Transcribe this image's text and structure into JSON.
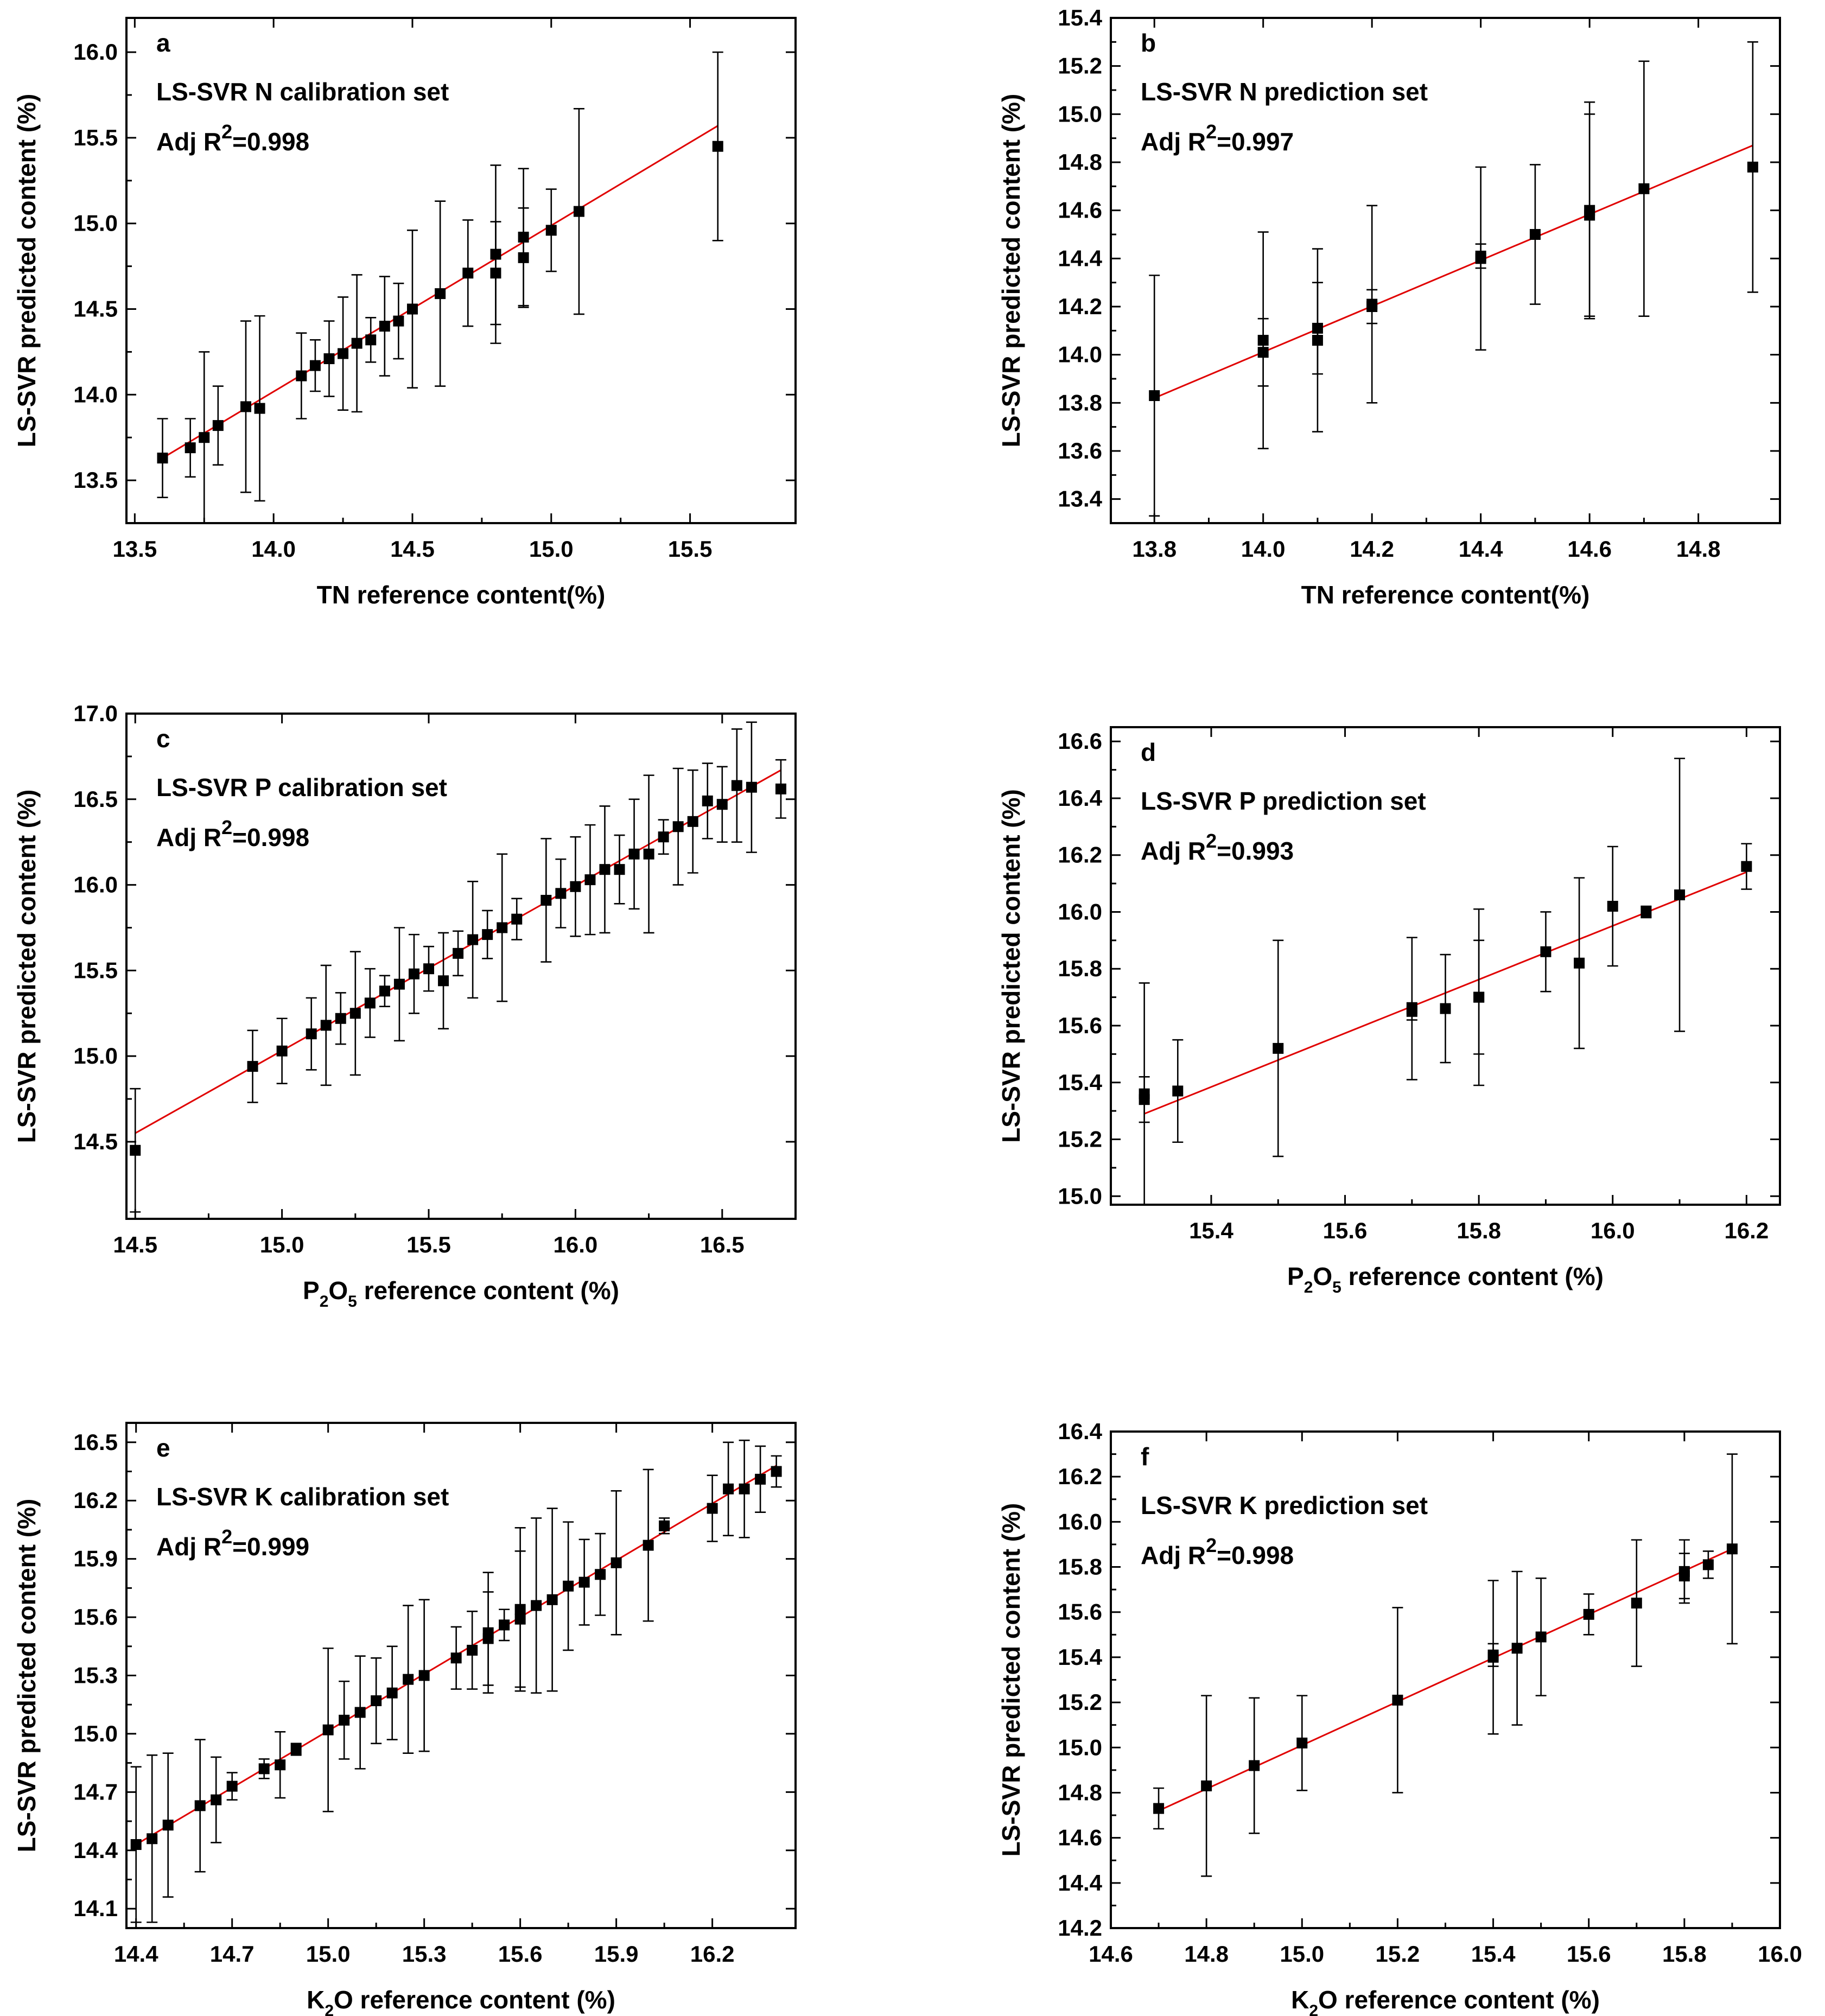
{
  "chart_data": [
    {
      "panel": "a",
      "type": "scatter",
      "title": "LS-SVR N calibration set",
      "r2_prefix": "Adj R",
      "r2_exp": "2",
      "r2_value": "=0.998",
      "xlabel": "TN reference content(%)",
      "ylabel": "LS-SVR predicted content (%)",
      "xlim": [
        13.47,
        15.88
      ],
      "ylim": [
        13.25,
        16.2
      ],
      "xticks": [
        13.5,
        14.0,
        14.5,
        15.0,
        15.5
      ],
      "yticks": [
        13.5,
        14.0,
        14.5,
        15.0,
        15.5,
        16.0
      ],
      "decimals": 1,
      "fit_line": {
        "x": [
          13.6,
          15.6
        ],
        "y": [
          13.63,
          15.57
        ]
      },
      "points": [
        {
          "x": 13.6,
          "y": 13.63,
          "err": 0.23
        },
        {
          "x": 13.7,
          "y": 13.69,
          "err": 0.17
        },
        {
          "x": 13.75,
          "y": 13.75,
          "err": 0.5
        },
        {
          "x": 13.8,
          "y": 13.82,
          "err": 0.23
        },
        {
          "x": 13.9,
          "y": 13.93,
          "err": 0.5
        },
        {
          "x": 13.95,
          "y": 13.92,
          "err": 0.54
        },
        {
          "x": 14.1,
          "y": 14.11,
          "err": 0.25
        },
        {
          "x": 14.15,
          "y": 14.17,
          "err": 0.15
        },
        {
          "x": 14.2,
          "y": 14.21,
          "err": 0.22
        },
        {
          "x": 14.25,
          "y": 14.24,
          "err": 0.33
        },
        {
          "x": 14.3,
          "y": 14.3,
          "err": 0.4
        },
        {
          "x": 14.35,
          "y": 14.32,
          "err": 0.13
        },
        {
          "x": 14.4,
          "y": 14.4,
          "err": 0.29
        },
        {
          "x": 14.45,
          "y": 14.43,
          "err": 0.22
        },
        {
          "x": 14.5,
          "y": 14.5,
          "err": 0.46
        },
        {
          "x": 14.6,
          "y": 14.59,
          "err": 0.54
        },
        {
          "x": 14.7,
          "y": 14.71,
          "err": 0.31
        },
        {
          "x": 14.8,
          "y": 14.82,
          "err": 0.52
        },
        {
          "x": 14.8,
          "y": 14.71,
          "err": 0.3
        },
        {
          "x": 14.9,
          "y": 14.92,
          "err": 0.4
        },
        {
          "x": 14.9,
          "y": 14.8,
          "err": 0.29
        },
        {
          "x": 15.0,
          "y": 14.96,
          "err": 0.24
        },
        {
          "x": 15.1,
          "y": 15.07,
          "err": 0.6
        },
        {
          "x": 15.6,
          "y": 15.45,
          "err": 0.55
        }
      ]
    },
    {
      "panel": "b",
      "type": "scatter",
      "title": "LS-SVR N prediction set",
      "r2_prefix": "Adj R",
      "r2_exp": "2",
      "r2_value": "=0.997",
      "xlabel": "TN reference content(%)",
      "ylabel": "LS-SVR predicted content (%)",
      "xlim": [
        13.72,
        14.95
      ],
      "ylim": [
        13.3,
        15.4
      ],
      "xticks": [
        13.8,
        14.0,
        14.2,
        14.4,
        14.6,
        14.8
      ],
      "yticks": [
        13.4,
        13.6,
        13.8,
        14.0,
        14.2,
        14.4,
        14.6,
        14.8,
        15.0,
        15.2,
        15.4
      ],
      "decimals": 1,
      "fit_line": {
        "x": [
          13.8,
          14.9
        ],
        "y": [
          13.82,
          14.87
        ]
      },
      "points": [
        {
          "x": 13.8,
          "y": 13.83,
          "err": 0.5
        },
        {
          "x": 14.0,
          "y": 14.06,
          "err": 0.45
        },
        {
          "x": 14.0,
          "y": 14.01,
          "err": 0.14
        },
        {
          "x": 14.1,
          "y": 14.11,
          "err": 0.19
        },
        {
          "x": 14.1,
          "y": 14.06,
          "err": 0.38
        },
        {
          "x": 14.2,
          "y": 14.21,
          "err": 0.41
        },
        {
          "x": 14.2,
          "y": 14.2,
          "err": 0.07
        },
        {
          "x": 14.4,
          "y": 14.4,
          "err": 0.38
        },
        {
          "x": 14.4,
          "y": 14.41,
          "err": 0.05
        },
        {
          "x": 14.5,
          "y": 14.5,
          "err": 0.29
        },
        {
          "x": 14.6,
          "y": 14.6,
          "err": 0.45
        },
        {
          "x": 14.6,
          "y": 14.58,
          "err": 0.42
        },
        {
          "x": 14.7,
          "y": 14.69,
          "err": 0.53
        },
        {
          "x": 14.9,
          "y": 14.78,
          "err": 0.52
        }
      ]
    },
    {
      "panel": "c",
      "type": "scatter",
      "title": "LS-SVR P calibration set",
      "r2_prefix": "Adj R",
      "r2_exp": "2",
      "r2_value": "=0.998",
      "xlabel_pre": "P",
      "xlabel_sub1": "2",
      "xlabel_mid": "O",
      "xlabel_sub2": "5",
      "xlabel_post": " reference content (%)",
      "ylabel": "LS-SVR predicted content (%)",
      "xlim": [
        14.47,
        16.75
      ],
      "ylim": [
        14.05,
        17.0
      ],
      "xticks": [
        14.5,
        15.0,
        15.5,
        16.0,
        16.5
      ],
      "yticks": [
        14.5,
        15.0,
        15.5,
        16.0,
        16.5,
        17.0
      ],
      "decimals": 1,
      "fit_line": {
        "x": [
          14.5,
          16.7
        ],
        "y": [
          14.55,
          16.67
        ]
      },
      "points": [
        {
          "x": 14.5,
          "y": 14.45,
          "err": 0.36
        },
        {
          "x": 14.9,
          "y": 14.94,
          "err": 0.21
        },
        {
          "x": 15.0,
          "y": 15.03,
          "err": 0.19
        },
        {
          "x": 15.1,
          "y": 15.13,
          "err": 0.21
        },
        {
          "x": 15.15,
          "y": 15.18,
          "err": 0.35
        },
        {
          "x": 15.2,
          "y": 15.22,
          "err": 0.15
        },
        {
          "x": 15.25,
          "y": 15.25,
          "err": 0.36
        },
        {
          "x": 15.3,
          "y": 15.31,
          "err": 0.2
        },
        {
          "x": 15.35,
          "y": 15.38,
          "err": 0.09
        },
        {
          "x": 15.4,
          "y": 15.42,
          "err": 0.33
        },
        {
          "x": 15.45,
          "y": 15.48,
          "err": 0.23
        },
        {
          "x": 15.5,
          "y": 15.51,
          "err": 0.13
        },
        {
          "x": 15.55,
          "y": 15.44,
          "err": 0.28
        },
        {
          "x": 15.6,
          "y": 15.6,
          "err": 0.13
        },
        {
          "x": 15.65,
          "y": 15.68,
          "err": 0.34
        },
        {
          "x": 15.7,
          "y": 15.71,
          "err": 0.14
        },
        {
          "x": 15.75,
          "y": 15.75,
          "err": 0.43
        },
        {
          "x": 15.8,
          "y": 15.8,
          "err": 0.12
        },
        {
          "x": 15.9,
          "y": 15.91,
          "err": 0.36
        },
        {
          "x": 15.95,
          "y": 15.95,
          "err": 0.2
        },
        {
          "x": 16.0,
          "y": 15.99,
          "err": 0.29
        },
        {
          "x": 16.05,
          "y": 16.03,
          "err": 0.32
        },
        {
          "x": 16.1,
          "y": 16.09,
          "err": 0.37
        },
        {
          "x": 16.15,
          "y": 16.09,
          "err": 0.2
        },
        {
          "x": 16.2,
          "y": 16.18,
          "err": 0.32
        },
        {
          "x": 16.25,
          "y": 16.18,
          "err": 0.46
        },
        {
          "x": 16.3,
          "y": 16.28,
          "err": 0.1
        },
        {
          "x": 16.35,
          "y": 16.34,
          "err": 0.34
        },
        {
          "x": 16.4,
          "y": 16.37,
          "err": 0.3
        },
        {
          "x": 16.45,
          "y": 16.49,
          "err": 0.22
        },
        {
          "x": 16.5,
          "y": 16.47,
          "err": 0.22
        },
        {
          "x": 16.55,
          "y": 16.58,
          "err": 0.33
        },
        {
          "x": 16.6,
          "y": 16.57,
          "err": 0.38
        },
        {
          "x": 16.7,
          "y": 16.56,
          "err": 0.17
        }
      ]
    },
    {
      "panel": "d",
      "type": "scatter",
      "title": "LS-SVR P prediction set",
      "r2_prefix": "Adj R",
      "r2_exp": "2",
      "r2_value": "=0.993",
      "xlabel_pre": "P",
      "xlabel_sub1": "2",
      "xlabel_mid": "O",
      "xlabel_sub2": "5",
      "xlabel_post": " reference content (%)",
      "ylabel": "LS-SVR predicted content (%)",
      "xlim": [
        15.25,
        16.25
      ],
      "ylim": [
        14.97,
        16.65
      ],
      "xticks": [
        15.4,
        15.6,
        15.8,
        16.0,
        16.2
      ],
      "yticks": [
        15.0,
        15.2,
        15.4,
        15.6,
        15.8,
        16.0,
        16.2,
        16.4,
        16.6
      ],
      "decimals": 1,
      "fit_line": {
        "x": [
          15.3,
          16.2
        ],
        "y": [
          15.29,
          16.14
        ]
      },
      "points": [
        {
          "x": 15.3,
          "y": 15.36,
          "err": 0.39
        },
        {
          "x": 15.3,
          "y": 15.34,
          "err": 0.08
        },
        {
          "x": 15.35,
          "y": 15.37,
          "err": 0.18
        },
        {
          "x": 15.5,
          "y": 15.52,
          "err": 0.38
        },
        {
          "x": 15.7,
          "y": 15.66,
          "err": 0.25
        },
        {
          "x": 15.7,
          "y": 15.65,
          "err": 0.03
        },
        {
          "x": 15.75,
          "y": 15.66,
          "err": 0.19
        },
        {
          "x": 15.8,
          "y": 15.7,
          "err": 0.31
        },
        {
          "x": 15.8,
          "y": 15.7,
          "err": 0.2
        },
        {
          "x": 15.9,
          "y": 15.86,
          "err": 0.14
        },
        {
          "x": 15.95,
          "y": 15.82,
          "err": 0.3
        },
        {
          "x": 16.0,
          "y": 16.02,
          "err": 0.21
        },
        {
          "x": 16.05,
          "y": 16.0,
          "err": 0.02
        },
        {
          "x": 16.1,
          "y": 16.06,
          "err": 0.48
        },
        {
          "x": 16.2,
          "y": 16.16,
          "err": 0.08
        }
      ]
    },
    {
      "panel": "e",
      "type": "scatter",
      "title": "LS-SVR K calibration set",
      "r2_prefix": "Adj R",
      "r2_exp": "2",
      "r2_value": "=0.999",
      "xlabel_pre": "K",
      "xlabel_sub1": "2",
      "xlabel_mid": "O",
      "xlabel_sub2": "",
      "xlabel_post": " reference content (%)",
      "ylabel": "LS-SVR predicted content (%)",
      "xlim": [
        14.37,
        16.46
      ],
      "ylim": [
        14.0,
        16.6
      ],
      "xticks": [
        14.4,
        14.7,
        15.0,
        15.3,
        15.6,
        15.9,
        16.2
      ],
      "yticks": [
        14.1,
        14.4,
        14.7,
        15.0,
        15.3,
        15.6,
        15.9,
        16.2,
        16.5
      ],
      "decimals": 1,
      "fit_line": {
        "x": [
          14.4,
          16.4
        ],
        "y": [
          14.43,
          16.38
        ]
      },
      "points": [
        {
          "x": 14.4,
          "y": 14.43,
          "err": 0.4
        },
        {
          "x": 14.45,
          "y": 14.46,
          "err": 0.43
        },
        {
          "x": 14.5,
          "y": 14.53,
          "err": 0.37
        },
        {
          "x": 14.6,
          "y": 14.63,
          "err": 0.34
        },
        {
          "x": 14.65,
          "y": 14.66,
          "err": 0.22
        },
        {
          "x": 14.7,
          "y": 14.73,
          "err": 0.07
        },
        {
          "x": 14.8,
          "y": 14.82,
          "err": 0.05
        },
        {
          "x": 14.85,
          "y": 14.84,
          "err": 0.17
        },
        {
          "x": 14.9,
          "y": 14.92,
          "err": 0.03
        },
        {
          "x": 15.0,
          "y": 15.02,
          "err": 0.42
        },
        {
          "x": 15.05,
          "y": 15.07,
          "err": 0.2
        },
        {
          "x": 15.1,
          "y": 15.11,
          "err": 0.29
        },
        {
          "x": 15.15,
          "y": 15.17,
          "err": 0.22
        },
        {
          "x": 15.2,
          "y": 15.21,
          "err": 0.24
        },
        {
          "x": 15.25,
          "y": 15.28,
          "err": 0.38
        },
        {
          "x": 15.3,
          "y": 15.3,
          "err": 0.39
        },
        {
          "x": 15.4,
          "y": 15.39,
          "err": 0.16
        },
        {
          "x": 15.45,
          "y": 15.43,
          "err": 0.2
        },
        {
          "x": 15.5,
          "y": 15.52,
          "err": 0.31
        },
        {
          "x": 15.5,
          "y": 15.49,
          "err": 0.24
        },
        {
          "x": 15.55,
          "y": 15.56,
          "err": 0.08
        },
        {
          "x": 15.6,
          "y": 15.64,
          "err": 0.42
        },
        {
          "x": 15.6,
          "y": 15.59,
          "err": 0.35
        },
        {
          "x": 15.65,
          "y": 15.66,
          "err": 0.45
        },
        {
          "x": 15.7,
          "y": 15.69,
          "err": 0.47
        },
        {
          "x": 15.75,
          "y": 15.76,
          "err": 0.33
        },
        {
          "x": 15.8,
          "y": 15.78,
          "err": 0.22
        },
        {
          "x": 15.85,
          "y": 15.82,
          "err": 0.21
        },
        {
          "x": 15.9,
          "y": 15.88,
          "err": 0.37
        },
        {
          "x": 16.0,
          "y": 15.97,
          "err": 0.39
        },
        {
          "x": 16.05,
          "y": 16.07,
          "err": 0.04
        },
        {
          "x": 16.2,
          "y": 16.16,
          "err": 0.17
        },
        {
          "x": 16.25,
          "y": 16.26,
          "err": 0.24
        },
        {
          "x": 16.3,
          "y": 16.26,
          "err": 0.25
        },
        {
          "x": 16.35,
          "y": 16.31,
          "err": 0.17
        },
        {
          "x": 16.4,
          "y": 16.35,
          "err": 0.08
        }
      ]
    },
    {
      "panel": "f",
      "type": "scatter",
      "title": "LS-SVR K prediction set",
      "r2_prefix": "Adj R",
      "r2_exp": "2",
      "r2_value": "=0.998",
      "xlabel_pre": "K",
      "xlabel_sub1": "2",
      "xlabel_mid": "O",
      "xlabel_sub2": "",
      "xlabel_post": " reference content (%)",
      "ylabel": "LS-SVR predicted content (%)",
      "xlim": [
        14.6,
        16.0
      ],
      "ylim": [
        14.2,
        16.4
      ],
      "xticks": [
        14.6,
        14.8,
        15.0,
        15.2,
        15.4,
        15.6,
        15.8,
        16.0
      ],
      "yticks": [
        14.2,
        14.4,
        14.6,
        14.8,
        15.0,
        15.2,
        15.4,
        15.6,
        15.8,
        16.0,
        16.2,
        16.4
      ],
      "decimals": 1,
      "fit_line": {
        "x": [
          14.7,
          15.9
        ],
        "y": [
          14.72,
          15.88
        ]
      },
      "points": [
        {
          "x": 14.7,
          "y": 14.73,
          "err": 0.09
        },
        {
          "x": 14.8,
          "y": 14.83,
          "err": 0.4
        },
        {
          "x": 14.9,
          "y": 14.92,
          "err": 0.3
        },
        {
          "x": 15.0,
          "y": 15.02,
          "err": 0.21
        },
        {
          "x": 15.2,
          "y": 15.21,
          "err": 0.41
        },
        {
          "x": 15.4,
          "y": 15.4,
          "err": 0.34
        },
        {
          "x": 15.4,
          "y": 15.41,
          "err": 0.05
        },
        {
          "x": 15.45,
          "y": 15.44,
          "err": 0.34
        },
        {
          "x": 15.5,
          "y": 15.49,
          "err": 0.26
        },
        {
          "x": 15.6,
          "y": 15.59,
          "err": 0.09
        },
        {
          "x": 15.7,
          "y": 15.64,
          "err": 0.28
        },
        {
          "x": 15.8,
          "y": 15.78,
          "err": 0.14
        },
        {
          "x": 15.8,
          "y": 15.76,
          "err": 0.1
        },
        {
          "x": 15.85,
          "y": 15.81,
          "err": 0.06
        },
        {
          "x": 15.9,
          "y": 15.88,
          "err": 0.42
        }
      ]
    }
  ],
  "colors": {
    "marker": "#000000",
    "fit_line": "#e00000",
    "axis": "#000000",
    "background": "#ffffff"
  }
}
